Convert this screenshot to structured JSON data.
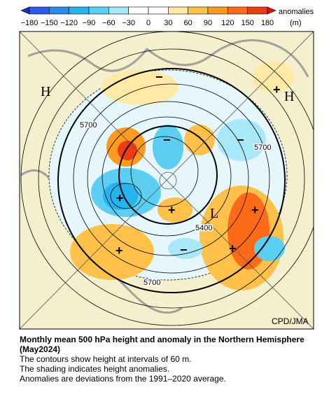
{
  "colorbar": {
    "ticks": [
      "−180",
      "−150",
      "−120",
      "−90",
      "−60",
      "−30",
      "0",
      "30",
      "60",
      "90",
      "120",
      "150",
      "180"
    ],
    "colors": [
      "#2a5ae8",
      "#2a8cf0",
      "#26b4ee",
      "#5ccef2",
      "#a8e8f8",
      "#ffffff",
      "#ffffff",
      "#ffe9a6",
      "#ffc14a",
      "#ff9a20",
      "#ff6a18",
      "#f03a14"
    ],
    "low_color": "#1a30c0",
    "high_color": "#e01010",
    "label": "anomalies",
    "unit": "(m)"
  },
  "map": {
    "labels": [
      "H",
      "H",
      "L",
      "5700",
      "5700",
      "5400",
      "5700",
      "+",
      "+",
      "+",
      "+",
      "+",
      "+",
      "−",
      "−",
      "−",
      "−"
    ],
    "credit": "CPD/JMA"
  },
  "caption": {
    "title": "Monthly mean 500 hPa height and anomaly in the Northern Hemisphere (May2024)",
    "lines": [
      "The contours show height at intervals of 60 m.",
      "The shading indicates height anomalies.",
      "Anomalies are deviations from the 1991–2020 average."
    ]
  }
}
